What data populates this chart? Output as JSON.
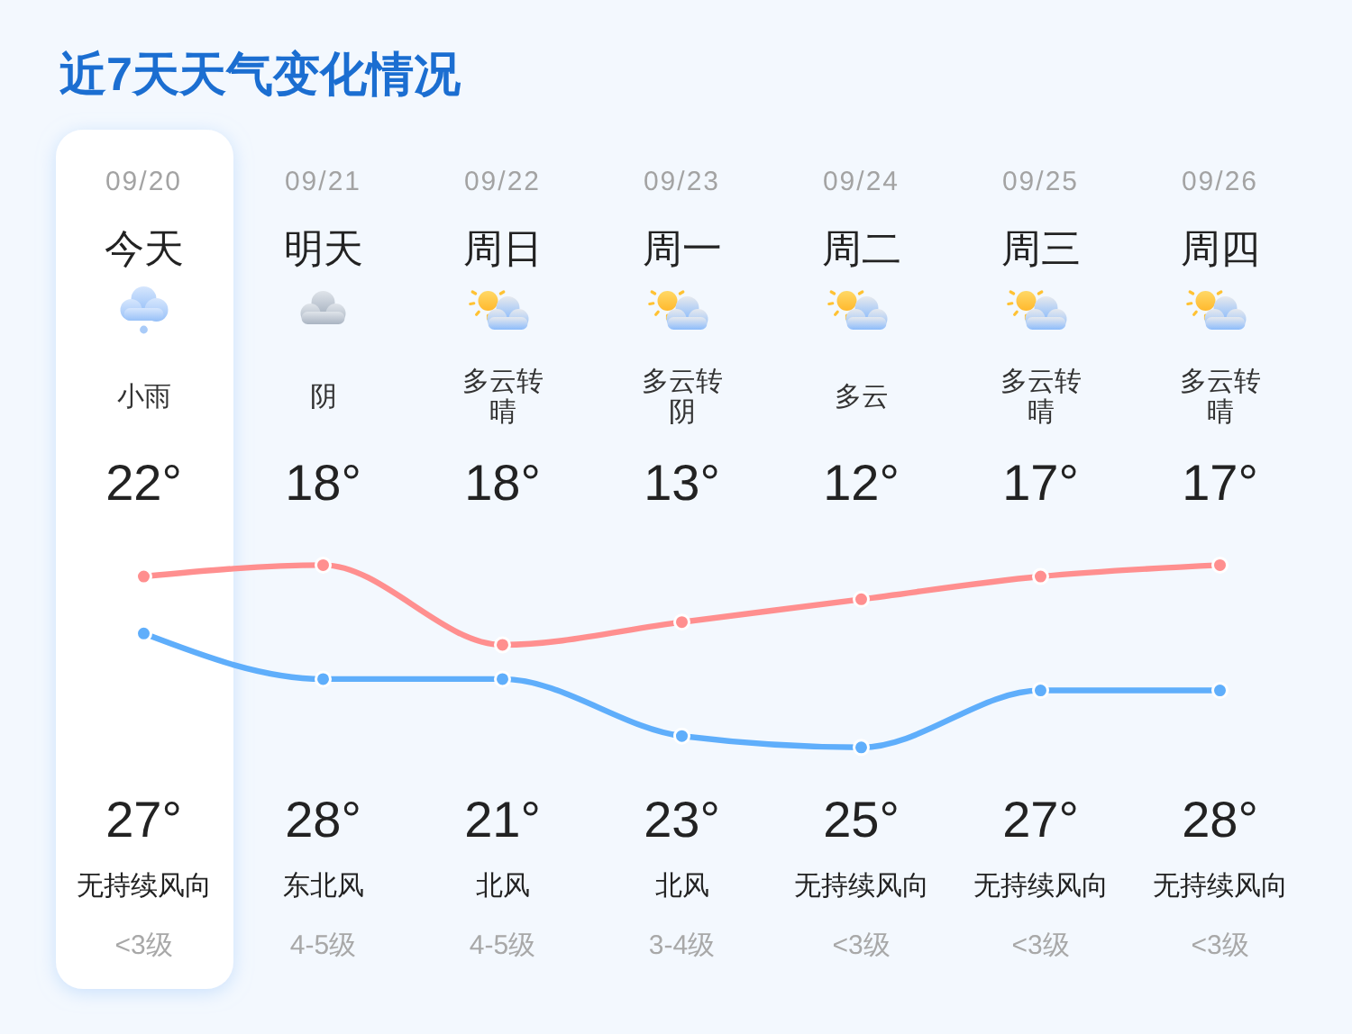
{
  "chart_data": {
    "type": "line",
    "title": "近7天天气变化情况",
    "categories": [
      "09/20",
      "09/21",
      "09/22",
      "09/23",
      "09/24",
      "09/25",
      "09/26"
    ],
    "series": [
      {
        "color": "#5faefb",
        "values": [
          22,
          18,
          18,
          13,
          12,
          17,
          17
        ],
        "value_labels": [
          "22°",
          "18°",
          "18°",
          "13°",
          "12°",
          "17°",
          "17°"
        ]
      },
      {
        "color": "#ff8f8f",
        "values": [
          27,
          28,
          21,
          23,
          25,
          27,
          28
        ],
        "value_labels": [
          "27°",
          "28°",
          "21°",
          "23°",
          "25°",
          "27°",
          "28°"
        ]
      }
    ],
    "tick_labels": "x",
    "marker": "circle",
    "line_style": "solid",
    "bands": [
      {
        "axis": "x",
        "from": "09/20",
        "to": "09/20",
        "color": "#ffffff"
      }
    ],
    "annotations": [
      "今天",
      "明天",
      "周日",
      "周一",
      "周二",
      "周三",
      "周四",
      "小雨",
      "阴",
      "多云转晴",
      "多云转阴",
      "多云",
      "多云转晴",
      "多云转晴",
      "无持续风向",
      "东北风",
      "北风",
      "北风",
      "无持续风向",
      "无持续风向",
      "无持续风向",
      "<3级",
      "4-5级",
      "4-5级",
      "3-4级",
      "<3级",
      "<3级",
      "<3级"
    ]
  }
}
